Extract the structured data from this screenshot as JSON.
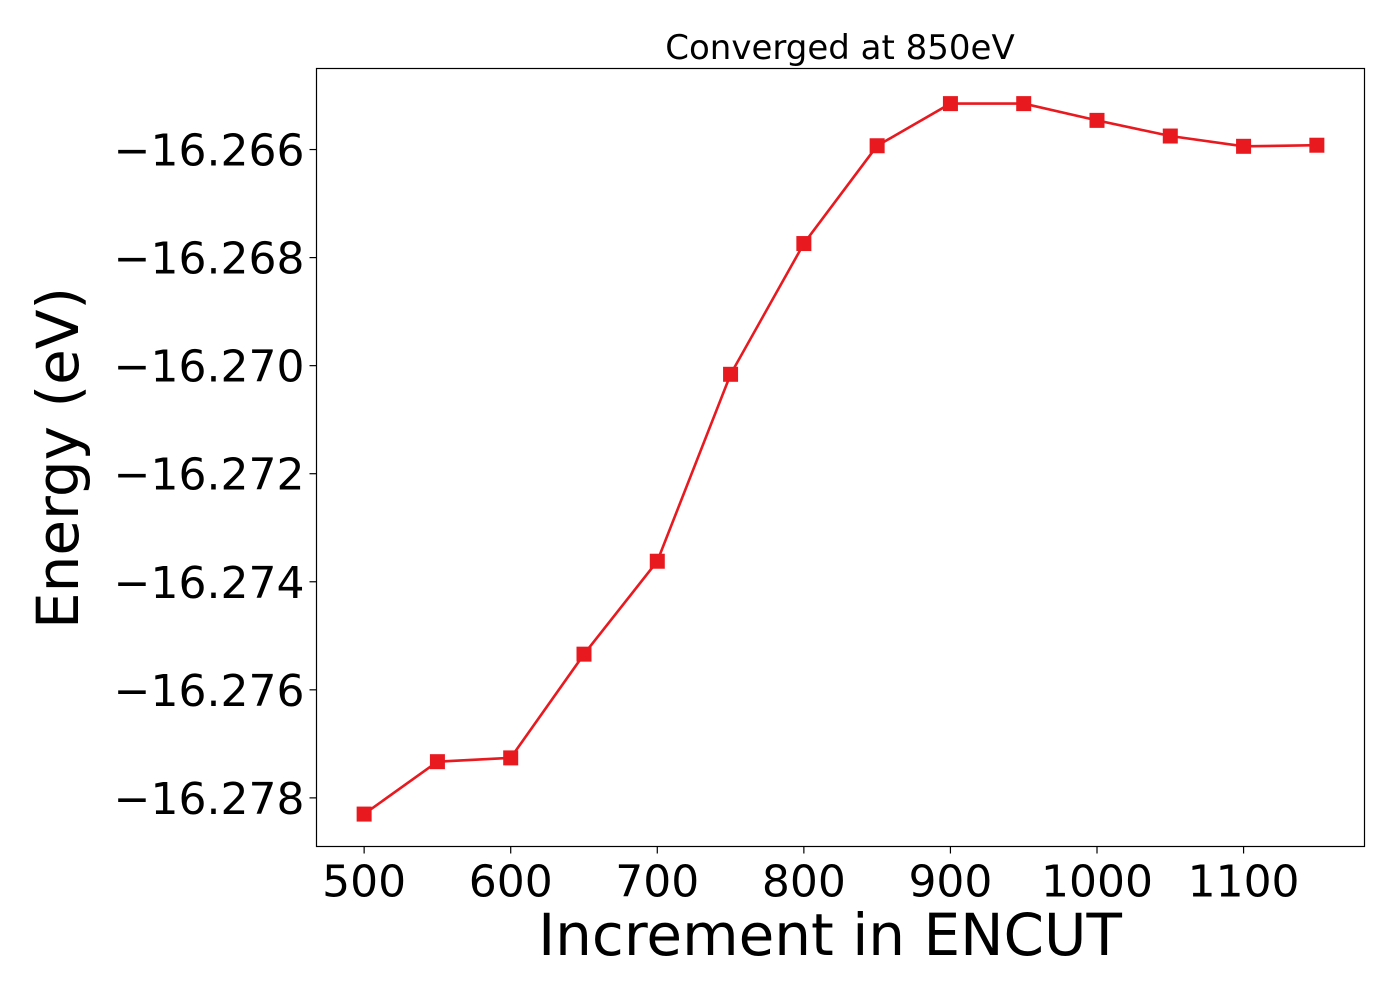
{
  "chart_data": {
    "type": "line",
    "title": "Converged at 850eV",
    "xlabel": "Increment in ENCUT",
    "ylabel": "Energy (eV)",
    "xlim": [
      467.5,
      1182.5
    ],
    "ylim": [
      -16.2789,
      -16.2645
    ],
    "x_ticks": [
      500,
      600,
      700,
      800,
      900,
      1000,
      1100
    ],
    "x_tick_labels": [
      "500",
      "600",
      "700",
      "800",
      "900",
      "1000",
      "1100"
    ],
    "y_ticks": [
      -16.266,
      -16.268,
      -16.27,
      -16.272,
      -16.274,
      -16.276,
      -16.278
    ],
    "y_tick_labels": [
      "−16.266",
      "−16.268",
      "−16.270",
      "−16.272",
      "−16.274",
      "−16.276",
      "−16.278"
    ],
    "grid": false,
    "series": [
      {
        "color": "#e8191f",
        "marker": "square",
        "x": [
          500,
          550,
          600,
          650,
          700,
          750,
          800,
          850,
          900,
          950,
          1000,
          1050,
          1100,
          1150
        ],
        "y": [
          -16.2783,
          -16.27733,
          -16.27726,
          -16.27534,
          -16.27362,
          -16.27016,
          -16.26774,
          -16.26593,
          -16.26515,
          -16.26515,
          -16.26546,
          -16.26575,
          -16.26594,
          -16.26592
        ]
      }
    ]
  }
}
